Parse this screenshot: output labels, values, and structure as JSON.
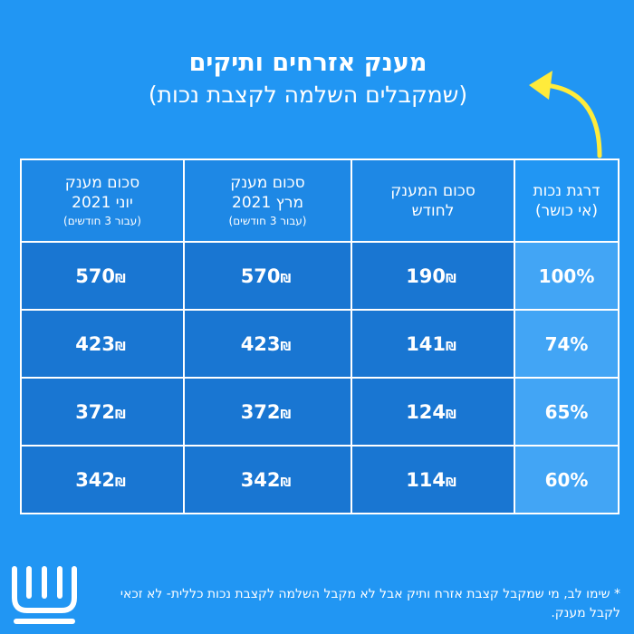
{
  "title": {
    "main": "מענק אזרחים ותיקים",
    "sub": "(שמקבלים השלמה לקצבת נכות)"
  },
  "table": {
    "headers": [
      {
        "line1": "דרגת נכות",
        "line2": "(אי כושר)",
        "small": ""
      },
      {
        "line1": "סכום המענק",
        "line2": "לחודש",
        "small": ""
      },
      {
        "line1": "סכום מענק",
        "line2": "מרץ 2021",
        "small": "(עבור 3 חודשים)"
      },
      {
        "line1": "סכום מענק",
        "line2": "יוני 2021",
        "small": "(עבור 3 חודשים)"
      }
    ],
    "currency": "₪",
    "rows": [
      {
        "percent": "100%",
        "monthly": "190",
        "march": "570",
        "june": "570"
      },
      {
        "percent": "74%",
        "monthly": "141",
        "march": "423",
        "june": "423"
      },
      {
        "percent": "65%",
        "monthly": "124",
        "march": "372",
        "june": "372"
      },
      {
        "percent": "60%",
        "monthly": "114",
        "march": "342",
        "june": "342"
      }
    ]
  },
  "footnote": "* שימו לב, מי שמקבל קצבת אזרח ותיק אבל לא מקבל השלמה לקצבת נכות כללית- לא זכאי לקבל מענק.",
  "colors": {
    "background": "#2196F3",
    "arrow": "#FFEB3B",
    "cell_dark": "#1976D2",
    "cell_light": "#42A5F5"
  },
  "icons": {
    "arrow": "curved-arrow-icon",
    "logo": "bituach-leumi-logo-icon"
  }
}
